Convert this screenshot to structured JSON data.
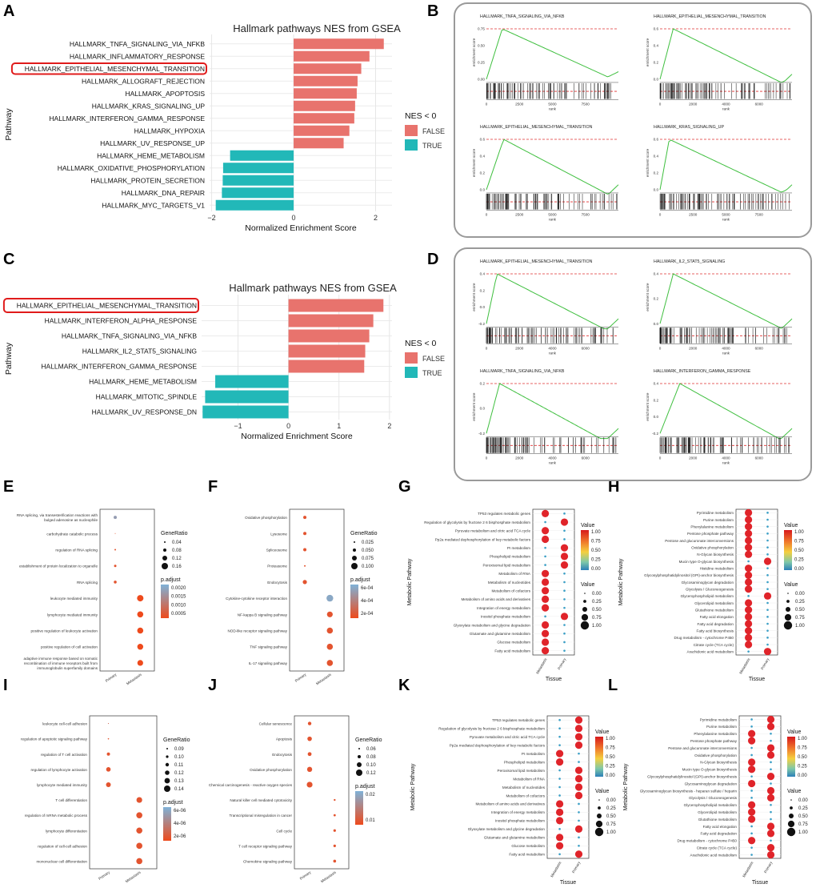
{
  "panels": [
    "A",
    "B",
    "C",
    "D",
    "E",
    "F",
    "G",
    "H",
    "I",
    "J",
    "K",
    "L"
  ],
  "chart_data": [
    {
      "id": "A",
      "type": "bar",
      "title": "Hallmark pathways NES from GSEA",
      "xlabel": "Normalized Enrichment Score",
      "ylabel": "Pathway",
      "xlim": [
        -2.05,
        2.4
      ],
      "xticks": [
        -2,
        0,
        2
      ],
      "legend_title": "NES < 0",
      "legend": [
        "FALSE",
        "TRUE"
      ],
      "colors": {
        "FALSE": "#e8736d",
        "TRUE": "#22b8b8",
        "highlight": "#e01b1b"
      },
      "highlight": "HALLMARK_EPITHELIAL_MESENCHYMAL_TRANSITION",
      "categories": [
        "HALLMARK_TNFA_SIGNALING_VIA_NFKB",
        "HALLMARK_INFLAMMATORY_RESPONSE",
        "HALLMARK_EPITHELIAL_MESENCHYMAL_TRANSITION",
        "HALLMARK_ALLOGRAFT_REJECTION",
        "HALLMARK_APOPTOSIS",
        "HALLMARK_KRAS_SIGNALING_UP",
        "HALLMARK_INTERFERON_GAMMA_RESPONSE",
        "HALLMARK_HYPOXIA",
        "HALLMARK_UV_RESPONSE_UP",
        "HALLMARK_HEME_METABOLISM",
        "HALLMARK_OXIDATIVE_PHOSPHORYLATION",
        "HALLMARK_PROTEIN_SECRETION",
        "HALLMARK_DNA_REPAIR",
        "HALLMARK_MYC_TARGETS_V1"
      ],
      "values": [
        2.2,
        1.85,
        1.65,
        1.56,
        1.54,
        1.5,
        1.48,
        1.36,
        1.22,
        -1.55,
        -1.72,
        -1.73,
        -1.75,
        -1.9
      ]
    },
    {
      "id": "C",
      "type": "bar",
      "title": "Hallmark pathways NES from GSEA",
      "xlabel": "Normalized Enrichment Score",
      "ylabel": "Pathway",
      "xlim": [
        -1.72,
        2.05
      ],
      "xticks": [
        -1,
        0,
        1,
        2
      ],
      "legend_title": "NES < 0",
      "legend": [
        "FALSE",
        "TRUE"
      ],
      "colors": {
        "FALSE": "#e8736d",
        "TRUE": "#22b8b8",
        "highlight": "#e01b1b"
      },
      "highlight": "HALLMARK_EPITHELIAL_MESENCHYMAL_TRANSITION",
      "categories": [
        "HALLMARK_EPITHELIAL_MESENCHYMAL_TRANSITION",
        "HALLMARK_INTERFERON_ALPHA_RESPONSE",
        "HALLMARK_TNFA_SIGNALING_VIA_NFKB",
        "HALLMARK_IL2_STAT5_SIGNALING",
        "HALLMARK_INTERFERON_GAMMA_RESPONSE",
        "HALLMARK_HEME_METABOLISM",
        "HALLMARK_MITOTIC_SPINDLE",
        "HALLMARK_UV_RESPONSE_DN"
      ],
      "values": [
        1.88,
        1.68,
        1.6,
        1.52,
        1.5,
        -1.45,
        -1.65,
        -1.7
      ]
    },
    {
      "id": "B",
      "type": "line",
      "ylabel": "enrichment score",
      "xlabel": "rank",
      "color": "#3fbf3f",
      "plots": [
        {
          "title": "HALLMARK_TNFA_SIGNALING_VIA_NFKB",
          "yticks": [
            "0.75",
            "0.50",
            "0.25",
            "0.00"
          ],
          "xticks": [
            "0",
            "2500",
            "5000",
            "7500"
          ],
          "peak": 0.12,
          "end_dip": 0.0
        },
        {
          "title": "HALLMARK_EPITHELIAL_MESENCHYMAL_TRANSITION",
          "yticks": [
            "0.6",
            "0.4",
            "0.2",
            "0.0"
          ],
          "xticks": [
            "0",
            "2000",
            "4000",
            "6000"
          ],
          "peak": 0.1,
          "end_dip": 0.12
        },
        {
          "title": "HALLMARK_EPITHELIAL_MESENCHYMAL_TRANSITION",
          "yticks": [
            "0.6",
            "0.4",
            "0.2",
            "0.0"
          ],
          "xticks": [
            "0",
            "2500",
            "5000",
            "7500"
          ],
          "peak": 0.13,
          "end_dip": 0.15
        },
        {
          "title": "HALLMARK_KRAS_SIGNALING_UP",
          "yticks": [
            "0.6",
            "0.4",
            "0.2",
            "0.0"
          ],
          "xticks": [
            "0",
            "2500",
            "5000",
            "7500"
          ],
          "peak": 0.07,
          "end_dip": 0.1
        }
      ]
    },
    {
      "id": "D",
      "type": "line",
      "ylabel": "enrichment score",
      "xlabel": "rank",
      "color": "#3fbf3f",
      "plots": [
        {
          "title": "HALLMARK_EPITHELIAL_MESENCHYMAL_TRANSITION",
          "yticks": [
            "0.4",
            "0.2",
            "0.0",
            "-0.2"
          ],
          "xticks": [
            "0",
            "2000",
            "4000",
            "6000"
          ],
          "peak": 0.08,
          "end_dip": 0.2
        },
        {
          "title": "HALLMARK_IL2_STAT5_SIGNALING",
          "yticks": [
            "0.4",
            "0.2",
            "0.0"
          ],
          "xticks": [
            "0",
            "2000",
            "4000",
            "6000"
          ],
          "peak": 0.1,
          "end_dip": 0.15
        },
        {
          "title": "HALLMARK_TNFA_SIGNALING_VIA_NFKB",
          "yticks": [
            "0.2",
            "0.0",
            "-0.2"
          ],
          "xticks": [
            "0",
            "2000",
            "4000",
            "6000"
          ],
          "peak": 0.1,
          "end_dip": 0.25
        },
        {
          "title": "HALLMARK_INTERFERON_GAMMA_RESPONSE",
          "yticks": [
            "0.4",
            "0.2",
            "0.0",
            "-0.2"
          ],
          "xticks": [
            "0",
            "2000",
            "4000",
            "6000"
          ],
          "peak": 0.15,
          "end_dip": 0.2
        }
      ]
    },
    {
      "id": "E",
      "type": "scatter",
      "x_categories": [
        "Primary",
        "Metastasis"
      ],
      "size_title": "GeneRatio",
      "size_legend": [
        "0.04",
        "0.08",
        "0.12",
        "0.16"
      ],
      "color_title": "p.adjust",
      "color_legend": [
        "0.0020",
        "0.0015",
        "0.0010",
        "0.0005"
      ],
      "color_low": "#7fb2d8",
      "color_high": "#ee4a1c",
      "terms": [
        "RNA splicing, via transesterification reactions with bulged adenosine as nucleophile",
        "carbohydrate catabolic process",
        "regulation of RNA splicing",
        "establishment of protein localization to organelle",
        "RNA splicing",
        "leukocyte mediated immunity",
        "lymphocyte mediated immunity",
        "positive regulation of leukocyte activation",
        "positive regulation of cell activation",
        "adaptive immune response based on somatic recombination of immune receptors built from immunoglobulin superfamily domains"
      ],
      "points": [
        [
          0,
          0,
          2,
          0.2
        ],
        [
          1,
          0,
          0.5,
          0.9
        ],
        [
          2,
          0,
          1,
          0.9
        ],
        [
          3,
          0,
          1.5,
          0.9
        ],
        [
          4,
          0,
          1.8,
          0.9
        ],
        [
          5,
          1,
          4,
          1
        ],
        [
          6,
          1,
          3.8,
          1
        ],
        [
          7,
          1,
          3.8,
          1
        ],
        [
          8,
          1,
          3.7,
          1
        ],
        [
          9,
          1,
          3.6,
          1
        ]
      ]
    },
    {
      "id": "F",
      "type": "scatter",
      "x_categories": [
        "Primary",
        "Metastasis"
      ],
      "size_title": "GeneRatio",
      "size_legend": [
        "0.025",
        "0.050",
        "0.075",
        "0.100"
      ],
      "color_title": "p.adjust",
      "color_legend": [
        "6e-04",
        "4e-04",
        "2e-04"
      ],
      "color_low": "#7fb2d8",
      "color_high": "#ee4a1c",
      "terms": [
        "Oxidative phosphorylation",
        "Lysosome",
        "Spliceosome",
        "Proteasome",
        "Endocytosis",
        "Cytokine-cytokine receptor interaction",
        "NF-kappa B signaling pathway",
        "NOD-like receptor signaling pathway",
        "TNF signaling pathway",
        "IL-17 signaling pathway"
      ],
      "points": [
        [
          0,
          0,
          2,
          0.9
        ],
        [
          1,
          0,
          2,
          0.9
        ],
        [
          2,
          0,
          2,
          0.9
        ],
        [
          3,
          0,
          1,
          0.9
        ],
        [
          4,
          0,
          2.6,
          0.9
        ],
        [
          5,
          1,
          4.2,
          0.1
        ],
        [
          6,
          1,
          3.6,
          0.9
        ],
        [
          7,
          1,
          3.8,
          0.9
        ],
        [
          8,
          1,
          3.8,
          0.9
        ],
        [
          9,
          1,
          3.8,
          0.9
        ]
      ]
    },
    {
      "id": "G",
      "type": "scatter",
      "x_categories": [
        "Metastasis",
        "Primary"
      ],
      "xlabel": "Tissue",
      "ylabel": "Metabolic Pathway",
      "color_title": "Value",
      "color_legend": [
        "1.00",
        "0.75",
        "0.50",
        "0.25",
        "0.00"
      ],
      "size_title": "Value",
      "size_legend": [
        "0.00",
        "0.25",
        "0.50",
        "0.75",
        "1.00"
      ],
      "terms": [
        "TP53 regulates metabolic genes",
        "Regulation of glycolysis by fructose 2 6 bisphosphate metabolism",
        "Pyruvate metabolism and citric acid TCA cycle",
        "Pp2a mediated dephosphorylation of key metabolic factors",
        "PI metabolism",
        "Phospholipid metabolism",
        "Peroxisomal lipid metabolism",
        "Metabolism of RNA",
        "Metabolism of nucleotides",
        "Metabolism of cofactors",
        "Metabolism of amino acids and derivatives",
        "Integration of energy metabolism",
        "Inositol phosphate metabolism",
        "Glyoxylate metabolism and glycine degradation",
        "Glutamate and glutamine metabolism",
        "Glucose metabolism",
        "Fatty acid metabolism"
      ],
      "metastasis": [
        1,
        0,
        1,
        1,
        0,
        0,
        0,
        1,
        1,
        1,
        1,
        1,
        0,
        1,
        1,
        1,
        1
      ],
      "primary": [
        0,
        1,
        0,
        0,
        1,
        1,
        1,
        0,
        0,
        0,
        0,
        0,
        1,
        0,
        0,
        0,
        0
      ]
    },
    {
      "id": "H",
      "type": "scatter",
      "x_categories": [
        "Metastasis",
        "Primary"
      ],
      "xlabel": "Tissue",
      "ylabel": "Metabolic Pathway",
      "color_title": "Value",
      "color_legend": [
        "1.00",
        "0.75",
        "0.50",
        "0.25",
        "0.00"
      ],
      "size_title": "Value",
      "size_legend": [
        "0.00",
        "0.25",
        "0.50",
        "0.75",
        "1.00"
      ],
      "terms": [
        "Pyrimidine metabolism",
        "Purine metabolism",
        "Phenylalanine metabolism",
        "Pentose phosphate pathway",
        "Pentose and glucuronate interconversions",
        "Oxidative phosphorylation",
        "N-Glycan biosynthesis",
        "Mucin type O-glycan biosynthesis",
        "Histidine metabolism",
        "Glycosylphosphatidylinositol (GPI)-anchor biosynthesis",
        "Glycosaminoglycan degradation",
        "Glycolysis / Gluconeogenesis",
        "Glycerophospholipid metabolism",
        "Glycerolipid metabolism",
        "Glutathione metabolism",
        "Fatty acid elongation",
        "Fatty acid degradation",
        "Fatty acid biosynthesis",
        "Drug metabolism - cytochrome P450",
        "Citrate cycle (TCA cycle)",
        "Arachidonic acid metabolism"
      ],
      "metastasis": [
        1,
        1,
        1,
        1,
        1,
        1,
        1,
        0,
        1,
        1,
        1,
        1,
        0,
        1,
        1,
        1,
        1,
        1,
        1,
        1,
        0
      ],
      "primary": [
        0,
        0,
        0,
        0,
        0,
        0,
        0,
        1,
        0,
        0,
        0,
        0,
        1,
        0,
        0,
        0,
        0,
        0,
        0,
        0,
        1
      ]
    },
    {
      "id": "I",
      "type": "scatter",
      "x_categories": [
        "Primary",
        "Metastasis"
      ],
      "size_title": "GeneRatio",
      "size_legend": [
        "0.09",
        "0.10",
        "0.11",
        "0.12",
        "0.13",
        "0.14"
      ],
      "color_title": "p.adjust",
      "color_legend": [
        "6e-06",
        "4e-06",
        "2e-06"
      ],
      "color_low": "#7fb2d8",
      "color_high": "#ee4a1c",
      "terms": [
        "leukocyte cell-cell adhesion",
        "regulation of apoptotic signaling pathway",
        "regulation of T cell activation",
        "regulation of lymphocyte activation",
        "lymphocyte mediated immunity",
        "T cell differentiation",
        "regulation of mRNA metabolic process",
        "lymphocyte differentiation",
        "regulation of cell-cell adhesion",
        "mononuclear cell differentiation"
      ],
      "points": [
        [
          0,
          0,
          0.6,
          0.7
        ],
        [
          1,
          0,
          0.8,
          0.9
        ],
        [
          2,
          0,
          2,
          0.9
        ],
        [
          3,
          0,
          2.8,
          0.9
        ],
        [
          4,
          0,
          3,
          0.9
        ],
        [
          5,
          1,
          3.6,
          0.9
        ],
        [
          6,
          1,
          3.8,
          0.9
        ],
        [
          7,
          1,
          3.8,
          0.9
        ],
        [
          8,
          1,
          3.8,
          0.9
        ],
        [
          9,
          1,
          3.8,
          0.9
        ]
      ]
    },
    {
      "id": "J",
      "type": "scatter",
      "x_categories": [
        "Primary",
        "Metastasis"
      ],
      "size_title": "GeneRatio",
      "size_legend": [
        "0.06",
        "0.08",
        "0.10",
        "0.12"
      ],
      "color_title": "p.adjust",
      "color_legend": [
        "0.02",
        "0.01"
      ],
      "color_low": "#7fb2d8",
      "color_high": "#ee4a1c",
      "terms": [
        "Cellular senescence",
        "Apoptosis",
        "Endocytosis",
        "Oxidative phosphorylation",
        "Chemical carcinogenesis - reactive oxygen species",
        "Natural killer cell mediated cytotoxicity",
        "Transcriptional misregulation in cancer",
        "Cell cycle",
        "T cell receptor signaling pathway",
        "Chemokine signaling pathway"
      ],
      "points": [
        [
          0,
          0,
          2.2,
          0.9
        ],
        [
          1,
          0,
          2.8,
          0.9
        ],
        [
          2,
          0,
          2.4,
          0.9
        ],
        [
          3,
          0,
          3.2,
          0.9
        ],
        [
          4,
          0,
          3.6,
          0.9
        ],
        [
          5,
          1,
          1.2,
          0.9
        ],
        [
          6,
          1,
          1.4,
          0.9
        ],
        [
          7,
          1,
          1.6,
          0.9
        ],
        [
          8,
          1,
          1.6,
          0.9
        ],
        [
          9,
          1,
          1.8,
          0.9
        ]
      ]
    },
    {
      "id": "K",
      "type": "scatter",
      "x_categories": [
        "Metastasis",
        "Primary"
      ],
      "xlabel": "Tissue",
      "ylabel": "Metabolic Pathway",
      "color_title": "Value",
      "color_legend": [
        "1.00",
        "0.75",
        "0.50",
        "0.25",
        "0.00"
      ],
      "size_title": "Value",
      "size_legend": [
        "0.00",
        "0.25",
        "0.50",
        "0.75",
        "1.00"
      ],
      "terms": [
        "TP53 regulates metabolic genes",
        "Regulation of glycolysis by fructose 2 6 bisphosphate metabolism",
        "Pyruvate metabolism and citric acid TCA cycle",
        "Pp2a mediated dephosphorylation of key metabolic factors",
        "PI metabolism",
        "Phospholipid metabolism",
        "Peroxisomal lipid metabolism",
        "Metabolism of RNA",
        "Metabolism of nucleotides",
        "Metabolism of cofactors",
        "Metabolism of amino acids and derivatives",
        "Integration of energy metabolism",
        "Inositol phosphate metabolism",
        "Glyoxylate metabolism and glycine degradation",
        "Glutamate and glutamine metabolism",
        "Glucose metabolism",
        "Fatty acid metabolism"
      ],
      "metastasis": [
        0,
        0,
        0,
        0,
        1,
        1,
        0,
        0,
        0,
        0,
        1,
        1,
        1,
        0,
        1,
        1,
        0
      ],
      "primary": [
        1,
        1,
        1,
        1,
        0,
        0,
        1,
        1,
        1,
        1,
        0,
        0,
        0,
        1,
        0,
        0,
        1
      ]
    },
    {
      "id": "L",
      "type": "scatter",
      "x_categories": [
        "Metastasis",
        "Primary"
      ],
      "xlabel": "Tissue",
      "ylabel": "Metabolic Pathway",
      "color_title": "Value",
      "color_legend": [
        "1.00",
        "0.75",
        "0.50",
        "0.25",
        "0.00"
      ],
      "size_title": "Value",
      "size_legend": [
        "0.00",
        "0.25",
        "0.50",
        "0.75",
        "1.00"
      ],
      "terms": [
        "Pyrimidine metabolism",
        "Purine metabolism",
        "Phenylalanine metabolism",
        "Pentose phosphate pathway",
        "Pentose and glucuronate interconversions",
        "Oxidative phosphorylation",
        "N-Glycan biosynthesis",
        "Mucin type O-glycan biosynthesis",
        "Glycosylphosphatidylinositol (GPI)-anchor biosynthesis",
        "Glycosaminoglycan degradation",
        "Glycosaminoglycan biosynthesis - heparan sulfate / heparin",
        "Glycolysis / Gluconeogenesis",
        "Glycerophospholipid metabolism",
        "Glycerolipid metabolism",
        "Glutathione metabolism",
        "Fatty acid elongation",
        "Fatty acid degradation",
        "Drug metabolism - cytochrome P450",
        "Citrate cycle (TCA cycle)",
        "Arachidonic acid metabolism"
      ],
      "metastasis": [
        0,
        0,
        1,
        1,
        0,
        0,
        1,
        1,
        0,
        1,
        0,
        0,
        1,
        1,
        1,
        0,
        0,
        1,
        0,
        0
      ],
      "primary": [
        1,
        1,
        0,
        0,
        1,
        1,
        0,
        0,
        1,
        0,
        1,
        1,
        0,
        0,
        0,
        1,
        1,
        0,
        1,
        1
      ]
    }
  ]
}
